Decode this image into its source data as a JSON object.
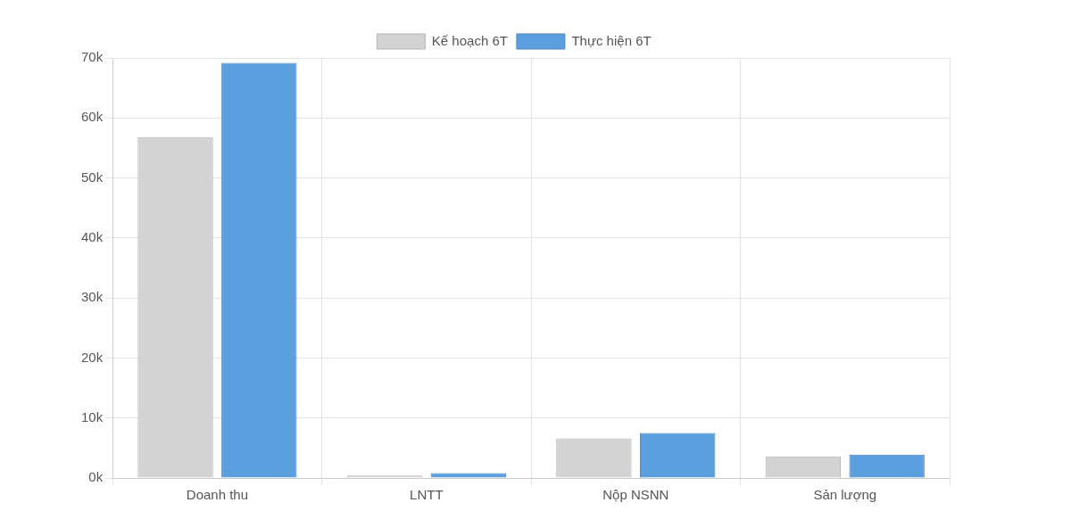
{
  "chart_data": {
    "type": "bar",
    "categories": [
      "Doanh thu",
      "LNTT",
      "Nộp NSNN",
      "Sản lượng"
    ],
    "series": [
      {
        "name": "Kế hoạch 6T",
        "color": "#d3d3d3",
        "values": [
          56800,
          400,
          6600,
          3600
        ]
      },
      {
        "name": "Thực hiện 6T",
        "color": "#5c9fdf",
        "values": [
          69200,
          800,
          7500,
          3900
        ]
      }
    ],
    "ylim": [
      0,
      70000
    ],
    "yticks": [
      {
        "value": 0,
        "label": "0k"
      },
      {
        "value": 10000,
        "label": "10k"
      },
      {
        "value": 20000,
        "label": "20k"
      },
      {
        "value": 30000,
        "label": "30k"
      },
      {
        "value": 40000,
        "label": "40k"
      },
      {
        "value": 50000,
        "label": "50k"
      },
      {
        "value": 60000,
        "label": "60k"
      },
      {
        "value": 70000,
        "label": "70k"
      }
    ],
    "grid": true,
    "legend": "top"
  }
}
